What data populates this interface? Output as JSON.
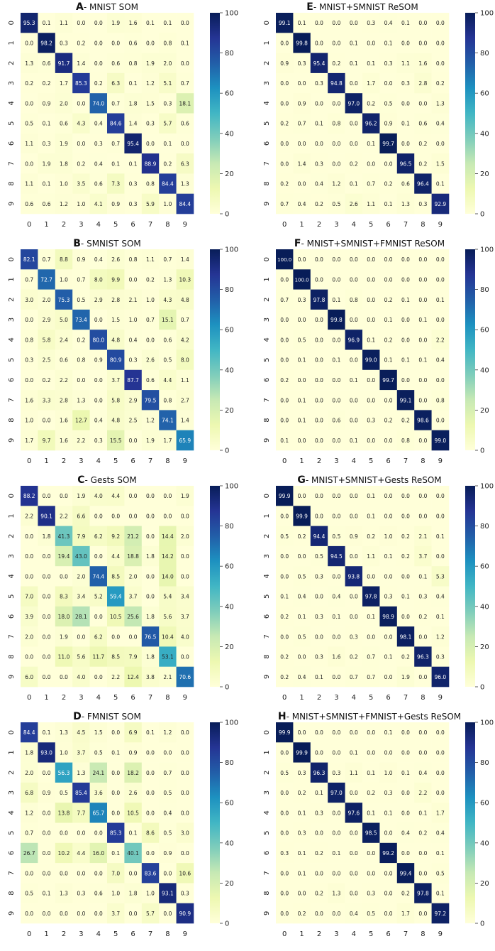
{
  "colorbar": {
    "ticks": [
      0,
      20,
      40,
      60,
      80,
      100
    ],
    "tick_labels": [
      "0",
      "20",
      "40",
      "60",
      "80",
      "100"
    ]
  },
  "colors": {
    "scale": [
      "#ffffd9",
      "#edf8b1",
      "#c7e9b4",
      "#7fcdbb",
      "#41b6c4",
      "#1d91c0",
      "#225ea8",
      "#253494",
      "#081d58"
    ],
    "text_dark": "#222222",
    "text_light": "#ffffff"
  },
  "axis_labels": [
    "0",
    "1",
    "2",
    "3",
    "4",
    "5",
    "6",
    "7",
    "8",
    "9"
  ],
  "chart_data": [
    {
      "type": "heatmap",
      "title": "MNIST SOM",
      "panel_letter": "A",
      "title_sep": "- ",
      "vmin": 0,
      "vmax": 100,
      "rows": [
        [
          "95.3",
          "0.1",
          "1.1",
          "0.0",
          "0.0",
          "1.9",
          "1.6",
          "0.1",
          "0.1",
          "0.0"
        ],
        [
          "0.0",
          "98.2",
          "0.3",
          "0.2",
          "0.0",
          "0.0",
          "0.6",
          "0.0",
          "0.8",
          "0.1"
        ],
        [
          "1.3",
          "0.6",
          "91.7",
          "1.4",
          "0.0",
          "0.6",
          "0.8",
          "1.9",
          "2.0",
          "0.0"
        ],
        [
          "0.2",
          "0.2",
          "1.7",
          "85.3",
          "0.2",
          "6.3",
          "0.1",
          "1.2",
          "5.1",
          "0.7"
        ],
        [
          "0.0",
          "0.9",
          "2.0",
          "0.0",
          "74.0",
          "0.7",
          "1.8",
          "1.5",
          "0.3",
          "18.1"
        ],
        [
          "0.5",
          "0.1",
          "0.6",
          "4.3",
          "0.4",
          "84.6",
          "1.4",
          "0.3",
          "5.7",
          "0.6"
        ],
        [
          "1.1",
          "0.3",
          "1.9",
          "0.0",
          "0.3",
          "0.7",
          "95.4",
          "0.0",
          "0.1",
          "0.0"
        ],
        [
          "0.0",
          "1.9",
          "1.8",
          "0.2",
          "0.4",
          "0.1",
          "0.1",
          "88.9",
          "0.2",
          "6.3"
        ],
        [
          "1.1",
          "0.1",
          "1.0",
          "3.5",
          "0.6",
          "7.3",
          "0.3",
          "0.8",
          "84.4",
          "1.3"
        ],
        [
          "0.6",
          "0.6",
          "1.2",
          "1.0",
          "4.1",
          "0.9",
          "0.3",
          "5.9",
          "1.0",
          "84.4"
        ]
      ]
    },
    {
      "type": "heatmap",
      "title": "MNIST+SMNIST ReSOM",
      "panel_letter": "E",
      "title_sep": "- ",
      "vmin": 0,
      "vmax": 100,
      "rows": [
        [
          "99.1",
          "0.1",
          "0.0",
          "0.0",
          "0.0",
          "0.3",
          "0.4",
          "0.1",
          "0.0",
          "0.0"
        ],
        [
          "0.0",
          "99.8",
          "0.0",
          "0.0",
          "0.1",
          "0.0",
          "0.1",
          "0.0",
          "0.0",
          "0.0"
        ],
        [
          "0.9",
          "0.3",
          "95.4",
          "0.2",
          "0.1",
          "0.1",
          "0.3",
          "1.1",
          "1.6",
          "0.0"
        ],
        [
          "0.0",
          "0.0",
          "0.3",
          "94.8",
          "0.0",
          "1.7",
          "0.0",
          "0.3",
          "2.8",
          "0.2"
        ],
        [
          "0.0",
          "0.9",
          "0.0",
          "0.0",
          "97.0",
          "0.2",
          "0.5",
          "0.0",
          "0.0",
          "1.3"
        ],
        [
          "0.2",
          "0.7",
          "0.1",
          "0.8",
          "0.0",
          "96.2",
          "0.9",
          "0.1",
          "0.6",
          "0.4"
        ],
        [
          "0.0",
          "0.0",
          "0.0",
          "0.0",
          "0.0",
          "0.1",
          "99.7",
          "0.0",
          "0.2",
          "0.0"
        ],
        [
          "0.0",
          "1.4",
          "0.3",
          "0.0",
          "0.2",
          "0.0",
          "0.0",
          "96.5",
          "0.2",
          "1.5"
        ],
        [
          "0.2",
          "0.0",
          "0.4",
          "1.2",
          "0.1",
          "0.7",
          "0.2",
          "0.6",
          "96.4",
          "0.1"
        ],
        [
          "0.7",
          "0.4",
          "0.2",
          "0.5",
          "2.6",
          "1.1",
          "0.1",
          "1.3",
          "0.3",
          "92.9"
        ]
      ]
    },
    {
      "type": "heatmap",
      "title": "SMNIST SOM",
      "panel_letter": "B",
      "title_sep": "- ",
      "vmin": 0,
      "vmax": 100,
      "rows": [
        [
          "82.1",
          "0.7",
          "8.8",
          "0.9",
          "0.4",
          "2.6",
          "0.8",
          "1.1",
          "0.7",
          "1.4"
        ],
        [
          "0.7",
          "72.7",
          "1.0",
          "0.7",
          "8.0",
          "9.9",
          "0.0",
          "0.2",
          "1.3",
          "10.3"
        ],
        [
          "3.0",
          "2.0",
          "75.3",
          "0.5",
          "2.9",
          "2.8",
          "2.1",
          "1.0",
          "4.3",
          "4.8"
        ],
        [
          "0.0",
          "2.9",
          "5.0",
          "73.4",
          "0.0",
          "1.5",
          "1.0",
          "0.7",
          "15.1",
          "0.7"
        ],
        [
          "0.8",
          "5.8",
          "2.4",
          "0.2",
          "80.0",
          "4.8",
          "0.4",
          "0.0",
          "0.6",
          "4.2"
        ],
        [
          "0.3",
          "2.5",
          "0.6",
          "0.8",
          "0.9",
          "80.9",
          "0.3",
          "2.6",
          "0.5",
          "8.0"
        ],
        [
          "0.0",
          "0.2",
          "2.2",
          "0.0",
          "0.0",
          "3.7",
          "87.7",
          "0.6",
          "4.4",
          "1.1"
        ],
        [
          "1.6",
          "3.3",
          "2.8",
          "1.3",
          "0.0",
          "5.8",
          "2.9",
          "79.5",
          "0.8",
          "2.7"
        ],
        [
          "1.0",
          "0.0",
          "1.6",
          "12.7",
          "0.4",
          "4.8",
          "2.5",
          "1.2",
          "74.1",
          "1.4"
        ],
        [
          "1.7",
          "9.7",
          "1.6",
          "2.2",
          "0.3",
          "15.5",
          "0.0",
          "1.9",
          "1.7",
          "65.9"
        ]
      ]
    },
    {
      "type": "heatmap",
      "title": "MNIST+SMNIST+FMNIST ReSOM",
      "panel_letter": "F",
      "title_sep": "- ",
      "vmin": 0,
      "vmax": 100,
      "rows": [
        [
          "100.0",
          "0.0",
          "0.0",
          "0.0",
          "0.0",
          "0.0",
          "0.0",
          "0.0",
          "0.0",
          "0.0"
        ],
        [
          "0.0",
          "100.0",
          "0.0",
          "0.0",
          "0.0",
          "0.0",
          "0.0",
          "0.0",
          "0.0",
          "0.0"
        ],
        [
          "0.7",
          "0.3",
          "97.8",
          "0.1",
          "0.8",
          "0.0",
          "0.2",
          "0.1",
          "0.0",
          "0.1"
        ],
        [
          "0.0",
          "0.0",
          "0.0",
          "99.8",
          "0.0",
          "0.0",
          "0.1",
          "0.0",
          "0.1",
          "0.0"
        ],
        [
          "0.0",
          "0.5",
          "0.0",
          "0.0",
          "96.9",
          "0.1",
          "0.2",
          "0.0",
          "0.0",
          "2.2"
        ],
        [
          "0.0",
          "0.1",
          "0.0",
          "0.1",
          "0.0",
          "99.0",
          "0.1",
          "0.1",
          "0.1",
          "0.4"
        ],
        [
          "0.2",
          "0.0",
          "0.0",
          "0.0",
          "0.1",
          "0.0",
          "99.7",
          "0.0",
          "0.0",
          "0.0"
        ],
        [
          "0.0",
          "0.1",
          "0.0",
          "0.0",
          "0.0",
          "0.0",
          "0.0",
          "99.1",
          "0.0",
          "0.8"
        ],
        [
          "0.0",
          "0.1",
          "0.0",
          "0.6",
          "0.0",
          "0.3",
          "0.2",
          "0.2",
          "98.6",
          "0.0"
        ],
        [
          "0.1",
          "0.0",
          "0.0",
          "0.0",
          "0.1",
          "0.0",
          "0.0",
          "0.8",
          "0.0",
          "99.0"
        ]
      ]
    },
    {
      "type": "heatmap",
      "title": "Gests SOM",
      "panel_letter": "C",
      "title_sep": "- ",
      "vmin": 0,
      "vmax": 100,
      "rows": [
        [
          "88.2",
          "0.0",
          "0.0",
          "1.9",
          "4.0",
          "4.4",
          "0.0",
          "0.0",
          "0.0",
          "1.9"
        ],
        [
          "2.2",
          "90.1",
          "2.2",
          "6.6",
          "0.0",
          "0.0",
          "0.0",
          "0.0",
          "0.0",
          "0.0"
        ],
        [
          "0.0",
          "1.8",
          "41.3",
          "7.9",
          "6.2",
          "9.2",
          "21.2",
          "0.0",
          "14.4",
          "2.0"
        ],
        [
          "0.0",
          "0.0",
          "19.4",
          "43.0",
          "0.0",
          "4.4",
          "18.8",
          "1.8",
          "14.2",
          "0.0"
        ],
        [
          "0.0",
          "0.0",
          "0.0",
          "2.0",
          "74.4",
          "8.5",
          "2.0",
          "0.0",
          "14.0",
          "0.0"
        ],
        [
          "7.0",
          "0.0",
          "8.3",
          "3.4",
          "5.2",
          "59.4",
          "3.7",
          "0.0",
          "5.4",
          "3.4"
        ],
        [
          "3.9",
          "0.0",
          "18.0",
          "28.1",
          "0.0",
          "10.5",
          "25.6",
          "1.8",
          "5.6",
          "3.7"
        ],
        [
          "2.0",
          "0.0",
          "1.9",
          "0.0",
          "6.2",
          "0.0",
          "0.0",
          "76.5",
          "10.4",
          "4.0"
        ],
        [
          "0.0",
          "0.0",
          "11.0",
          "5.6",
          "11.7",
          "8.5",
          "7.9",
          "1.8",
          "53.1",
          "0.0"
        ],
        [
          "6.0",
          "0.0",
          "0.0",
          "4.0",
          "0.0",
          "2.2",
          "12.4",
          "3.8",
          "2.1",
          "70.6"
        ]
      ]
    },
    {
      "type": "heatmap",
      "title": "MNIST+SMNIST+Gests ReSOM",
      "panel_letter": "G",
      "title_sep": "- ",
      "vmin": 0,
      "vmax": 100,
      "rows": [
        [
          "99.9",
          "0.0",
          "0.0",
          "0.0",
          "0.0",
          "0.1",
          "0.0",
          "0.0",
          "0.0",
          "0.0"
        ],
        [
          "0.0",
          "99.9",
          "0.0",
          "0.0",
          "0.0",
          "0.1",
          "0.0",
          "0.0",
          "0.0",
          "0.0"
        ],
        [
          "0.5",
          "0.2",
          "94.4",
          "0.5",
          "0.9",
          "0.2",
          "1.0",
          "0.2",
          "2.1",
          "0.1"
        ],
        [
          "0.0",
          "0.0",
          "0.5",
          "94.5",
          "0.0",
          "1.1",
          "0.1",
          "0.2",
          "3.7",
          "0.0"
        ],
        [
          "0.0",
          "0.5",
          "0.3",
          "0.0",
          "93.8",
          "0.0",
          "0.0",
          "0.0",
          "0.1",
          "5.3"
        ],
        [
          "0.1",
          "0.4",
          "0.0",
          "0.4",
          "0.0",
          "97.8",
          "0.3",
          "0.1",
          "0.3",
          "0.4"
        ],
        [
          "0.2",
          "0.1",
          "0.3",
          "0.1",
          "0.0",
          "0.1",
          "98.9",
          "0.0",
          "0.2",
          "0.1"
        ],
        [
          "0.0",
          "0.5",
          "0.0",
          "0.0",
          "0.3",
          "0.0",
          "0.0",
          "98.1",
          "0.0",
          "1.2"
        ],
        [
          "0.2",
          "0.0",
          "0.3",
          "1.6",
          "0.2",
          "0.7",
          "0.1",
          "0.2",
          "96.3",
          "0.3"
        ],
        [
          "0.2",
          "0.4",
          "0.1",
          "0.0",
          "0.7",
          "0.7",
          "0.0",
          "1.9",
          "0.0",
          "96.0"
        ]
      ]
    },
    {
      "type": "heatmap",
      "title": "FMNIST SOM",
      "panel_letter": "D",
      "title_sep": "- ",
      "vmin": 0,
      "vmax": 100,
      "rows": [
        [
          "84.4",
          "0.1",
          "1.3",
          "4.5",
          "1.5",
          "0.0",
          "6.9",
          "0.1",
          "1.2",
          "0.0"
        ],
        [
          "1.8",
          "93.0",
          "1.0",
          "3.7",
          "0.5",
          "0.1",
          "0.9",
          "0.0",
          "0.0",
          "0.0"
        ],
        [
          "2.0",
          "0.0",
          "56.3",
          "1.3",
          "24.1",
          "0.0",
          "18.2",
          "0.0",
          "0.7",
          "0.0"
        ],
        [
          "6.8",
          "0.9",
          "0.5",
          "85.4",
          "3.6",
          "0.0",
          "2.6",
          "0.0",
          "0.5",
          "0.0"
        ],
        [
          "1.2",
          "0.0",
          "13.8",
          "7.7",
          "65.7",
          "0.0",
          "10.5",
          "0.0",
          "0.4",
          "0.0"
        ],
        [
          "0.7",
          "0.0",
          "0.0",
          "0.0",
          "0.0",
          "85.3",
          "0.1",
          "8.6",
          "0.5",
          "3.0"
        ],
        [
          "26.7",
          "0.0",
          "10.2",
          "4.4",
          "16.0",
          "0.1",
          "40.1",
          "0.0",
          "0.9",
          "0.0"
        ],
        [
          "0.0",
          "0.0",
          "0.0",
          "0.0",
          "0.0",
          "7.0",
          "0.0",
          "83.6",
          "0.0",
          "10.6"
        ],
        [
          "0.5",
          "0.1",
          "1.3",
          "0.3",
          "0.6",
          "1.0",
          "1.8",
          "1.0",
          "93.1",
          "0.3"
        ],
        [
          "0.0",
          "0.0",
          "0.0",
          "0.0",
          "0.0",
          "3.7",
          "0.0",
          "5.7",
          "0.0",
          "90.9"
        ]
      ]
    },
    {
      "type": "heatmap",
      "title": "MNIST+SMNIST+FMNIST+Gests ReSOM",
      "panel_letter": "H",
      "title_sep": "- ",
      "vmin": 0,
      "vmax": 100,
      "rows": [
        [
          "99.9",
          "0.0",
          "0.0",
          "0.0",
          "0.0",
          "0.0",
          "0.1",
          "0.0",
          "0.0",
          "0.0"
        ],
        [
          "0.0",
          "99.9",
          "0.0",
          "0.0",
          "0.1",
          "0.0",
          "0.0",
          "0.0",
          "0.0",
          "0.0"
        ],
        [
          "0.5",
          "0.3",
          "96.3",
          "0.3",
          "1.1",
          "0.1",
          "1.0",
          "0.1",
          "0.4",
          "0.0"
        ],
        [
          "0.0",
          "0.2",
          "0.1",
          "97.0",
          "0.0",
          "0.2",
          "0.3",
          "0.0",
          "2.2",
          "0.0"
        ],
        [
          "0.0",
          "0.1",
          "0.3",
          "0.0",
          "97.6",
          "0.1",
          "0.1",
          "0.0",
          "0.1",
          "1.7"
        ],
        [
          "0.0",
          "0.3",
          "0.0",
          "0.0",
          "0.0",
          "98.5",
          "0.0",
          "0.4",
          "0.2",
          "0.4"
        ],
        [
          "0.3",
          "0.1",
          "0.2",
          "0.1",
          "0.0",
          "0.0",
          "99.2",
          "0.0",
          "0.0",
          "0.1"
        ],
        [
          "0.0",
          "0.1",
          "0.0",
          "0.0",
          "0.0",
          "0.0",
          "0.0",
          "99.4",
          "0.0",
          "0.5"
        ],
        [
          "0.0",
          "0.0",
          "0.2",
          "1.3",
          "0.0",
          "0.3",
          "0.0",
          "0.2",
          "97.8",
          "0.1"
        ],
        [
          "0.0",
          "0.2",
          "0.0",
          "0.0",
          "0.4",
          "0.5",
          "0.0",
          "1.7",
          "0.0",
          "97.2"
        ]
      ]
    }
  ]
}
